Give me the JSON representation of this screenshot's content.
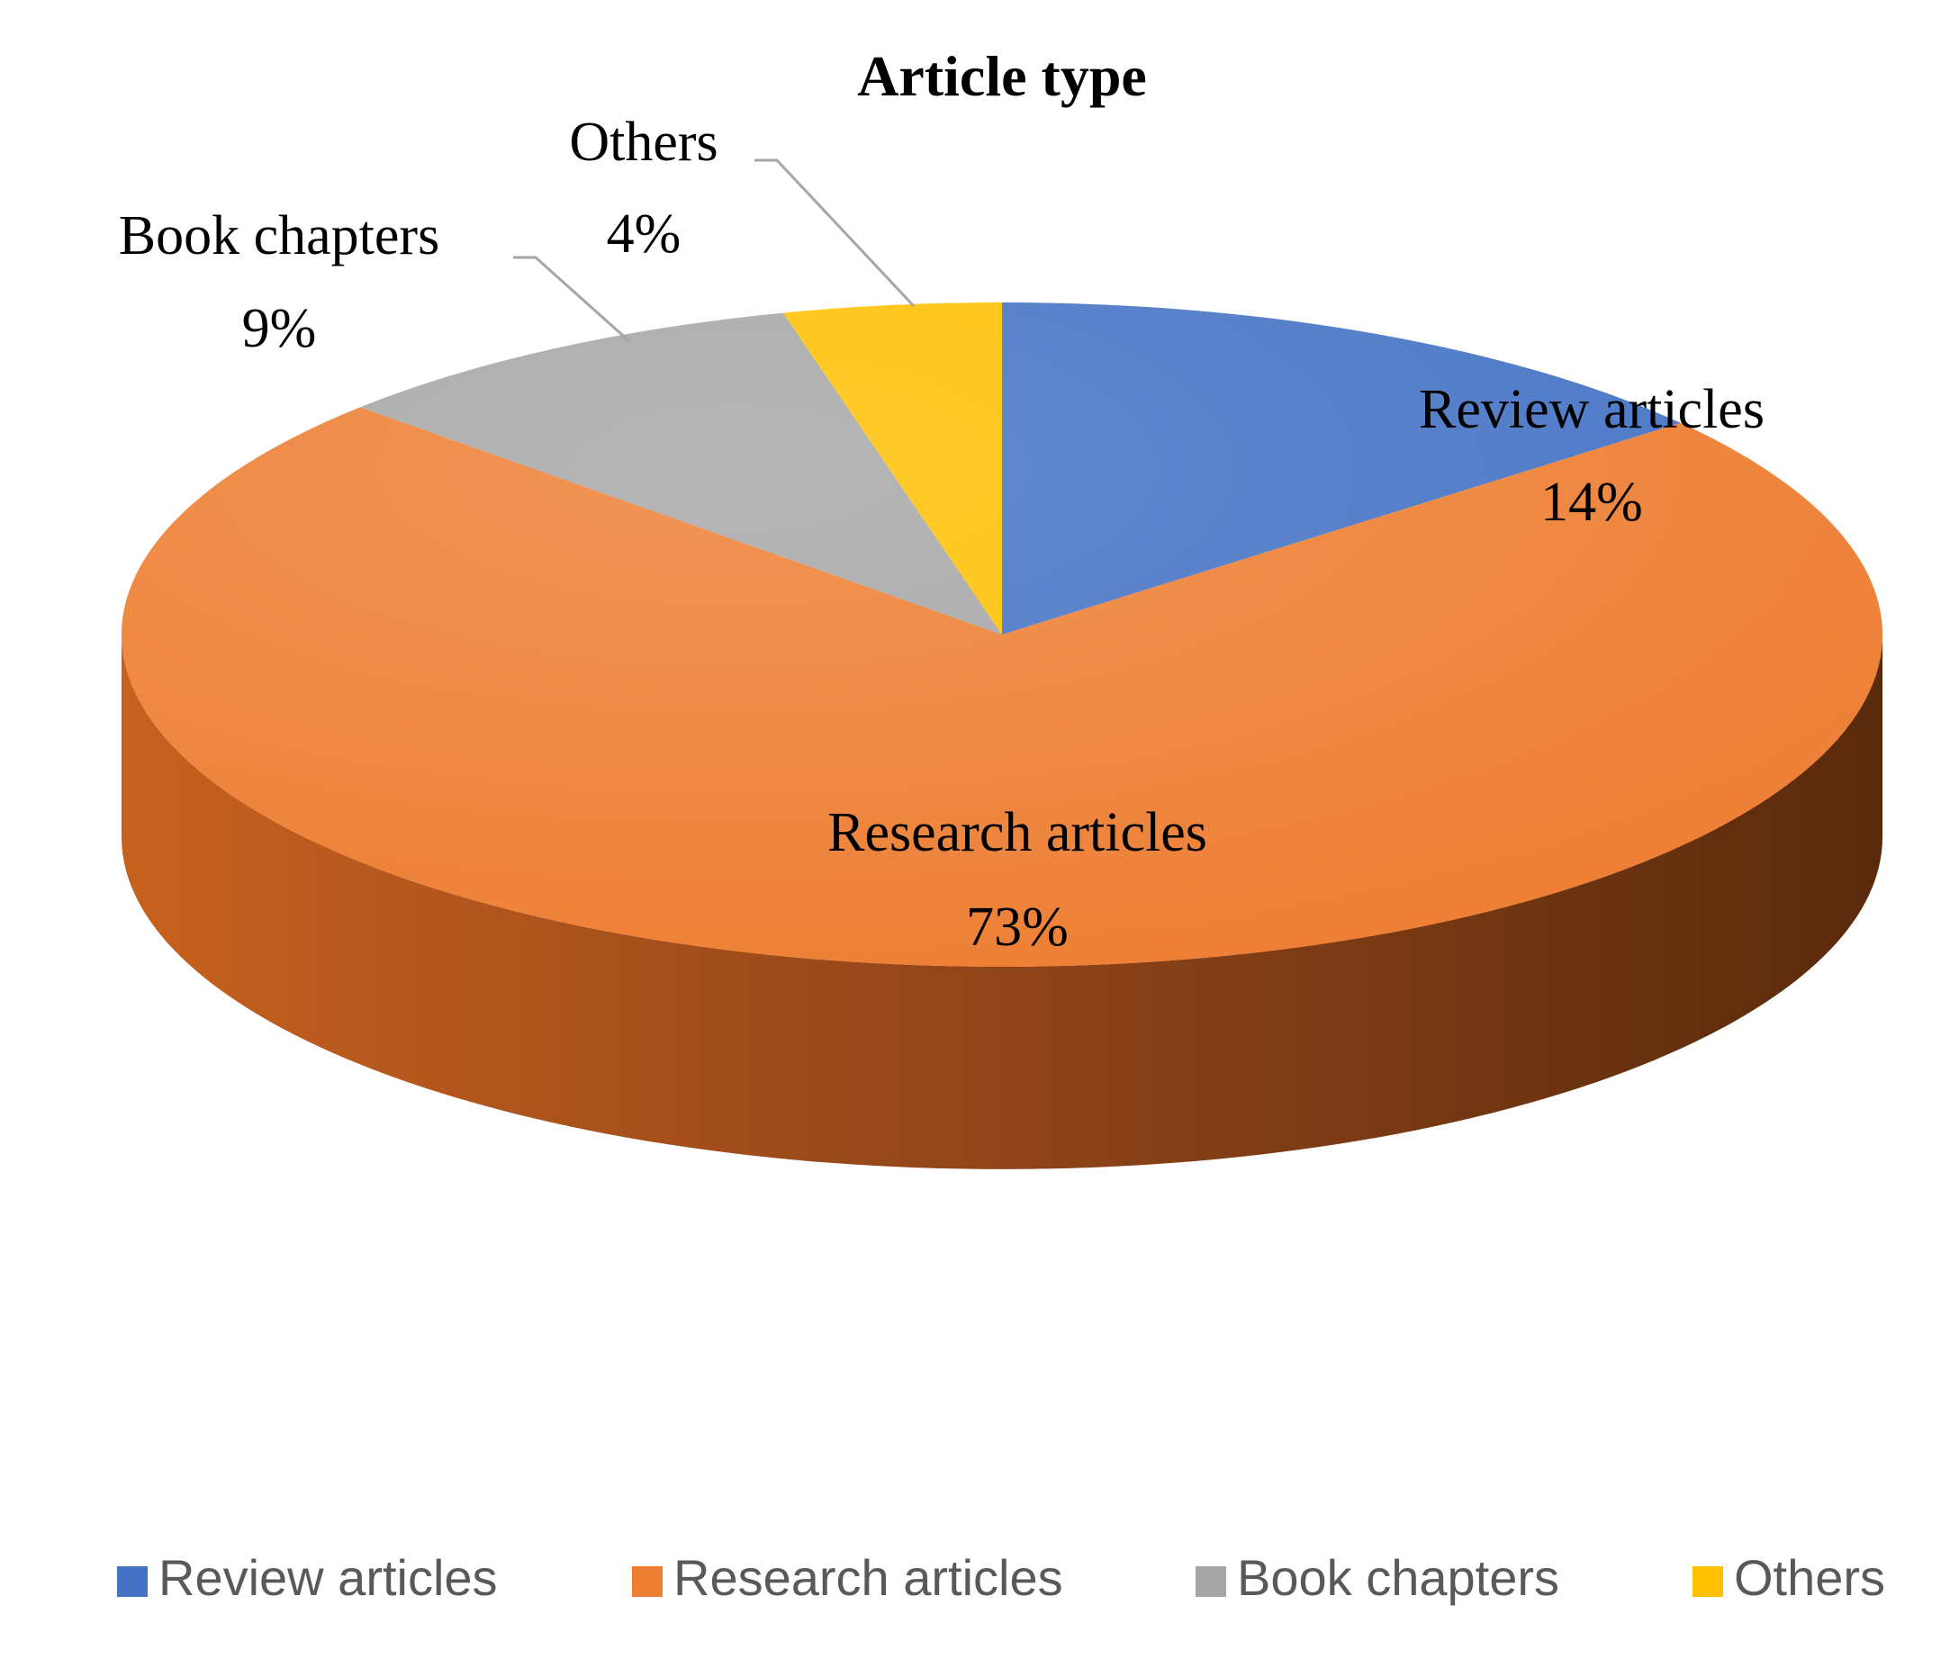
{
  "chart_data": {
    "type": "pie",
    "title": "Article type",
    "three_d": true,
    "start_angle_deg": 0,
    "direction": "clockwise",
    "slices": [
      {
        "label": "Review articles",
        "value": 14,
        "display": "14%",
        "color": "#4472C4",
        "side_color": "#2F5597"
      },
      {
        "label": "Research articles",
        "value": 73,
        "display": "73%",
        "color": "#ED7D31",
        "side_color": "#A9521B"
      },
      {
        "label": "Book chapters",
        "value": 9,
        "display": "9%",
        "color": "#A5A5A5",
        "side_color": "#7F7F7F"
      },
      {
        "label": "Others",
        "value": 4,
        "display": "4%",
        "color": "#FFC000",
        "side_color": "#BF9000"
      }
    ],
    "legend": {
      "position": "bottom",
      "entries": [
        "Review articles",
        "Research articles",
        "Book chapters",
        "Others"
      ]
    }
  }
}
